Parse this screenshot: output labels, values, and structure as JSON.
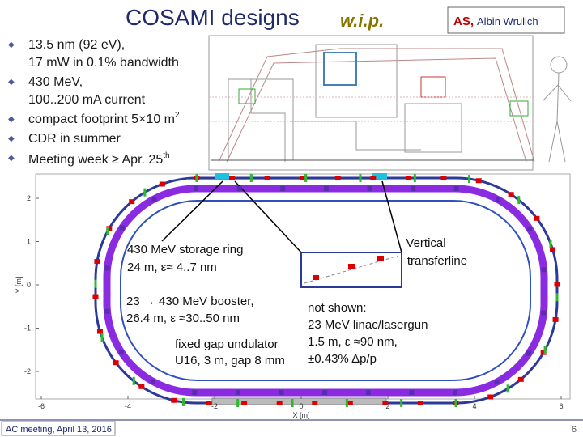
{
  "header": {
    "title": "COSAMI designs",
    "tag": "w.i.p.",
    "author_initials": "AS,",
    "author_name": "Albin Wrulich"
  },
  "bullets": [
    {
      "lines": [
        "13.5 nm (92 eV),",
        "17 mW in 0.1% bandwidth"
      ]
    },
    {
      "lines": [
        "430 MeV,",
        "100..200 mA current"
      ]
    },
    {
      "text": "compact footprint 5×10 m",
      "sup": "2"
    },
    {
      "text": "CDR in summer"
    },
    {
      "text": "Meeting week ≥ Apr. 25",
      "sup": "th"
    }
  ],
  "plot": {
    "xticks": [
      -6,
      -4,
      -2,
      0,
      2,
      4,
      6
    ],
    "yticks": [
      2,
      1,
      0,
      -1,
      -2
    ],
    "xlabel": "X [m]",
    "ylabel": "Y [m]"
  },
  "annotations": {
    "storage_ring": [
      "430 MeV storage ring",
      "24 m, ε≈ 4..7 nm"
    ],
    "booster": [
      "23 → 430 MeV booster,",
      "26.4 m, ε ≈30..50 nm"
    ],
    "undulator": [
      "fixed gap undulator",
      "U16, 3 m, gap 8 mm"
    ],
    "transferline": [
      "Vertical",
      "transferline"
    ],
    "not_shown": [
      "not shown:",
      "23 MeV linac/lasergun",
      "1.5 m, ε ≈90 nm,",
      "±0.43% Δp/p"
    ]
  },
  "footer": {
    "meeting": "AC meeting, April 13, 2016",
    "page": "6"
  }
}
